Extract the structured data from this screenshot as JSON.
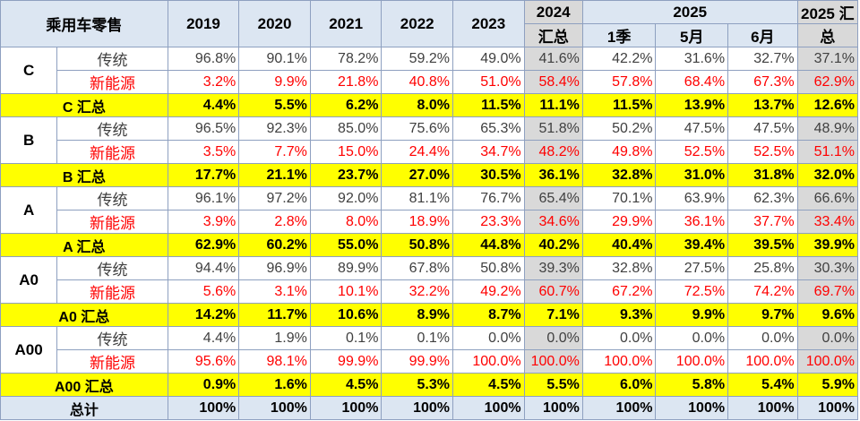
{
  "header": {
    "corner_label": "乘用车零售",
    "years": [
      "2019",
      "2020",
      "2021",
      "2022",
      "2023"
    ],
    "col_2024": [
      "2024",
      "汇总"
    ],
    "group_2025": "2025",
    "sub_2025": [
      "1季",
      "5月",
      "6月"
    ],
    "col_2025_sum": [
      "2025 汇",
      "总"
    ]
  },
  "segments": [
    {
      "name": "C",
      "rows": [
        {
          "label": "传统",
          "values": [
            "96.8%",
            "90.1%",
            "78.2%",
            "59.2%",
            "49.0%",
            "41.6%",
            "42.2%",
            "31.6%",
            "32.7%",
            "37.1%"
          ]
        },
        {
          "label": "新能源",
          "values": [
            "3.2%",
            "9.9%",
            "21.8%",
            "40.8%",
            "51.0%",
            "58.4%",
            "57.8%",
            "68.4%",
            "67.3%",
            "62.9%"
          ]
        }
      ],
      "summary_label": "C 汇总",
      "summary": [
        "4.4%",
        "5.5%",
        "6.2%",
        "8.0%",
        "11.5%",
        "11.1%",
        "11.5%",
        "13.9%",
        "13.7%",
        "12.6%"
      ]
    },
    {
      "name": "B",
      "rows": [
        {
          "label": "传统",
          "values": [
            "96.5%",
            "92.3%",
            "85.0%",
            "75.6%",
            "65.3%",
            "51.8%",
            "50.2%",
            "47.5%",
            "47.5%",
            "48.9%"
          ]
        },
        {
          "label": "新能源",
          "values": [
            "3.5%",
            "7.7%",
            "15.0%",
            "24.4%",
            "34.7%",
            "48.2%",
            "49.8%",
            "52.5%",
            "52.5%",
            "51.1%"
          ]
        }
      ],
      "summary_label": "B 汇总",
      "summary": [
        "17.7%",
        "21.1%",
        "23.7%",
        "27.0%",
        "30.5%",
        "36.1%",
        "32.8%",
        "31.0%",
        "31.8%",
        "32.0%"
      ]
    },
    {
      "name": "A",
      "rows": [
        {
          "label": "传统",
          "values": [
            "96.1%",
            "97.2%",
            "92.0%",
            "81.1%",
            "76.7%",
            "65.4%",
            "70.1%",
            "63.9%",
            "62.3%",
            "66.6%"
          ]
        },
        {
          "label": "新能源",
          "values": [
            "3.9%",
            "2.8%",
            "8.0%",
            "18.9%",
            "23.3%",
            "34.6%",
            "29.9%",
            "36.1%",
            "37.7%",
            "33.4%"
          ]
        }
      ],
      "summary_label": "A 汇总",
      "summary": [
        "62.9%",
        "60.2%",
        "55.0%",
        "50.8%",
        "44.8%",
        "40.2%",
        "40.4%",
        "39.4%",
        "39.5%",
        "39.9%"
      ]
    },
    {
      "name": "A0",
      "rows": [
        {
          "label": "传统",
          "values": [
            "94.4%",
            "96.9%",
            "89.9%",
            "67.8%",
            "50.8%",
            "39.3%",
            "32.8%",
            "27.5%",
            "25.8%",
            "30.3%"
          ]
        },
        {
          "label": "新能源",
          "values": [
            "5.6%",
            "3.1%",
            "10.1%",
            "32.2%",
            "49.2%",
            "60.7%",
            "67.2%",
            "72.5%",
            "74.2%",
            "69.7%"
          ]
        }
      ],
      "summary_label": "A0 汇总",
      "summary": [
        "14.2%",
        "11.7%",
        "10.6%",
        "8.9%",
        "8.7%",
        "7.1%",
        "9.3%",
        "9.9%",
        "9.7%",
        "9.6%"
      ]
    },
    {
      "name": "A00",
      "rows": [
        {
          "label": "传统",
          "values": [
            "4.4%",
            "1.9%",
            "0.1%",
            "0.1%",
            "0.0%",
            "0.0%",
            "0.0%",
            "0.0%",
            "0.0%",
            "0.0%"
          ]
        },
        {
          "label": "新能源",
          "values": [
            "95.6%",
            "98.1%",
            "99.9%",
            "99.9%",
            "100.0%",
            "100.0%",
            "100.0%",
            "100.0%",
            "100.0%",
            "100.0%"
          ]
        }
      ],
      "summary_label": "A00 汇总",
      "summary": [
        "0.9%",
        "1.6%",
        "4.5%",
        "5.3%",
        "4.5%",
        "5.5%",
        "6.0%",
        "5.8%",
        "5.4%",
        "5.9%"
      ]
    }
  ],
  "total": {
    "label": "总计",
    "values": [
      "100%",
      "100%",
      "100%",
      "100%",
      "100%",
      "100%",
      "100%",
      "100%",
      "100%",
      "100%"
    ]
  },
  "colors": {
    "header_bg": "#dce6f2",
    "summary_bg": "#ffff00",
    "highlight_gray": "#d9d9d9",
    "nev_text": "#ff0000",
    "trad_text": "#404040"
  }
}
